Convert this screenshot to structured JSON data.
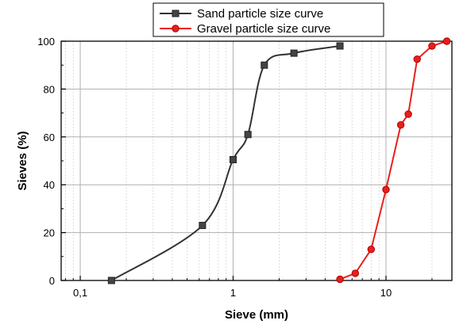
{
  "chart_data": {
    "type": "line",
    "xlabel": "Sieve (mm)",
    "ylabel": "Sieves (%)",
    "xscale": "log",
    "xlim": [
      0.075,
      27
    ],
    "ylim": [
      0,
      100
    ],
    "x_ticks": [
      {
        "value": 0.1,
        "label": "0,1"
      },
      {
        "value": 1,
        "label": "1"
      },
      {
        "value": 10,
        "label": "10"
      }
    ],
    "y_ticks": [
      0,
      20,
      40,
      60,
      80,
      100
    ],
    "grid": true,
    "legend_position": "top-center",
    "series": [
      {
        "name": "Sand particle size curve",
        "color": "#333333",
        "marker": "square",
        "smooth": true,
        "points": [
          {
            "x": 0.16,
            "y": 0
          },
          {
            "x": 0.63,
            "y": 23
          },
          {
            "x": 1.0,
            "y": 50.5
          },
          {
            "x": 1.25,
            "y": 61
          },
          {
            "x": 1.6,
            "y": 90
          },
          {
            "x": 2.5,
            "y": 95
          },
          {
            "x": 5.0,
            "y": 98
          }
        ]
      },
      {
        "name": "Gravel particle size curve",
        "color": "#e8201c",
        "marker": "circle",
        "smooth": false,
        "points": [
          {
            "x": 5.0,
            "y": 0.5
          },
          {
            "x": 6.3,
            "y": 3
          },
          {
            "x": 8.0,
            "y": 13
          },
          {
            "x": 10.0,
            "y": 38
          },
          {
            "x": 12.5,
            "y": 65
          },
          {
            "x": 14.0,
            "y": 69.5
          },
          {
            "x": 16.0,
            "y": 92.5
          },
          {
            "x": 20.0,
            "y": 98
          },
          {
            "x": 25.0,
            "y": 100
          }
        ]
      }
    ]
  }
}
